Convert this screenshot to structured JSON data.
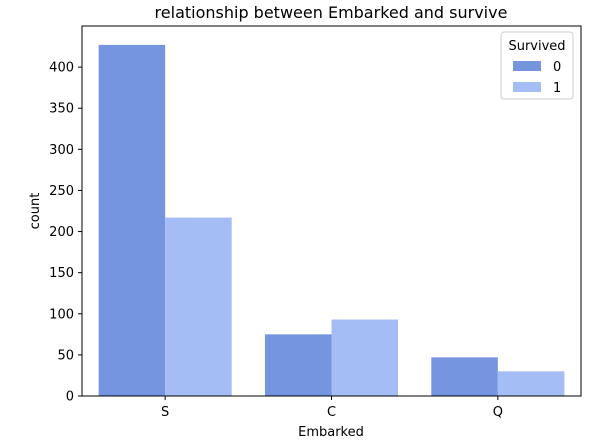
{
  "chart_data": {
    "type": "bar",
    "title": "relationship between Embarked and survive",
    "xlabel": "Embarked",
    "ylabel": "count",
    "categories": [
      "S",
      "C",
      "Q"
    ],
    "series": [
      {
        "name": "0",
        "values": [
          427,
          75,
          47
        ],
        "color": "#7595e1"
      },
      {
        "name": "1",
        "values": [
          217,
          93,
          30
        ],
        "color": "#a4bdf4"
      }
    ],
    "ylim": [
      0,
      450
    ],
    "yticks": [
      0,
      50,
      100,
      150,
      200,
      250,
      300,
      350,
      400
    ],
    "grid": false,
    "legend": {
      "title": "Survived",
      "placement": "top-right"
    }
  }
}
